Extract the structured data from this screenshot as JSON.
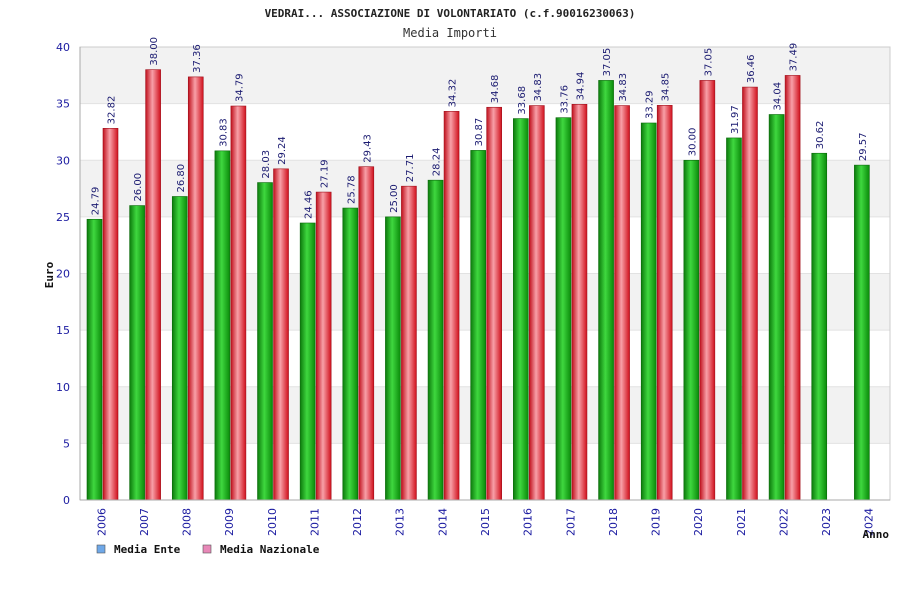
{
  "chart_data": {
    "type": "bar",
    "title": "VEDRAI... ASSOCIAZIONE DI VOLONTARIATO (c.f.90016230063)",
    "subtitle": "Media Importi",
    "xlabel": "Anno",
    "ylabel": "Euro",
    "ylim": [
      0,
      40
    ],
    "yticks": [
      0,
      5,
      10,
      15,
      20,
      25,
      30,
      35,
      40
    ],
    "grid": true,
    "legend_position": "bottom-left",
    "categories": [
      "2006",
      "2007",
      "2008",
      "2009",
      "2010",
      "2011",
      "2012",
      "2013",
      "2014",
      "2015",
      "2016",
      "2017",
      "2018",
      "2019",
      "2020",
      "2021",
      "2022",
      "2023",
      "2024"
    ],
    "series": [
      {
        "name": "Media Ente",
        "color": "#1aa81a",
        "legend_color": "#6fa8e8",
        "values": [
          24.79,
          26.0,
          26.8,
          30.83,
          28.03,
          24.46,
          25.78,
          25.0,
          28.24,
          30.87,
          33.68,
          33.76,
          37.05,
          33.29,
          30.0,
          31.97,
          34.04,
          30.62,
          29.57
        ],
        "labels": [
          "24.79",
          "26.00",
          "26.80",
          "30.83",
          "28.03",
          "24.46",
          "25.78",
          "25.00",
          "28.24",
          "30.87",
          "33.68",
          "33.76",
          "37.05",
          "33.29",
          "30.00",
          "31.97",
          "34.04",
          "30.62",
          "29.57"
        ]
      },
      {
        "name": "Media Nazionale",
        "color": "#e02030",
        "legend_color": "#e888b8",
        "values": [
          32.82,
          38.0,
          37.36,
          34.79,
          29.24,
          27.19,
          29.43,
          27.71,
          34.32,
          34.68,
          34.83,
          34.94,
          34.83,
          34.85,
          37.05,
          36.46,
          37.49,
          null,
          null
        ],
        "labels": [
          "32.82",
          "38.00",
          "37.36",
          "34.79",
          "29.24",
          "27.19",
          "29.43",
          "27.71",
          "34.32",
          "34.68",
          "34.83",
          "34.94",
          "34.83",
          "34.85",
          "37.05",
          "36.46",
          "37.49",
          null,
          null
        ]
      }
    ]
  }
}
